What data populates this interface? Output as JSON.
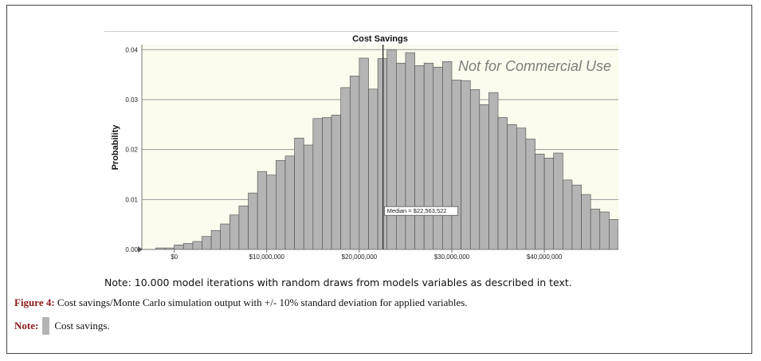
{
  "chart_data": {
    "type": "bar",
    "title": "Cost Savings",
    "ylabel": "Probability",
    "xlabel": "",
    "watermark": "Not for Commercial Use",
    "ylim": [
      0,
      0.041
    ],
    "xlim": [
      -3500000,
      48000000
    ],
    "bin_start": -2000000,
    "bin_width": 1000000,
    "values": [
      0.0003,
      0.0003,
      0.0009,
      0.0012,
      0.0016,
      0.0026,
      0.0038,
      0.0051,
      0.0069,
      0.0087,
      0.0113,
      0.0156,
      0.0149,
      0.0178,
      0.0187,
      0.0223,
      0.0209,
      0.0262,
      0.0264,
      0.0269,
      0.0324,
      0.0347,
      0.0383,
      0.0321,
      0.0382,
      0.04,
      0.0373,
      0.0394,
      0.0368,
      0.0373,
      0.0365,
      0.0376,
      0.0339,
      0.0338,
      0.032,
      0.029,
      0.0314,
      0.0264,
      0.025,
      0.0243,
      0.0221,
      0.0191,
      0.0183,
      0.0193,
      0.0139,
      0.0129,
      0.011,
      0.0081,
      0.0075,
      0.006,
      0.0043,
      0.003,
      0.0029,
      0.0026,
      0.0019,
      0.0017,
      0.0013,
      0.0009
    ],
    "yticks": [
      "0.00",
      "0.01",
      "0.02",
      "0.03",
      "0.04"
    ],
    "ytick_values": [
      0,
      0.01,
      0.02,
      0.03,
      0.04
    ],
    "xticks": [
      "$0",
      "$10,000,000",
      "$20,000,000",
      "$30,000,000",
      "$40,000,000"
    ],
    "xtick_values": [
      0,
      10000000,
      20000000,
      30000000,
      40000000
    ],
    "median_value": 22563522,
    "median_label": "Median = $22,563,522",
    "grid": true,
    "bar_color": "#b4b4b4",
    "plot_bg": "#fbfbee"
  },
  "note_text": "Note: 10.000 model iterations with random draws from models variables as described in text.",
  "caption": {
    "label": "Figure 4:",
    "text": " Cost savings/Monte Carlo simulation output with +/- 10% standard deviation for applied variables."
  },
  "legend": {
    "label": "Note:",
    "text": "Cost savings."
  }
}
